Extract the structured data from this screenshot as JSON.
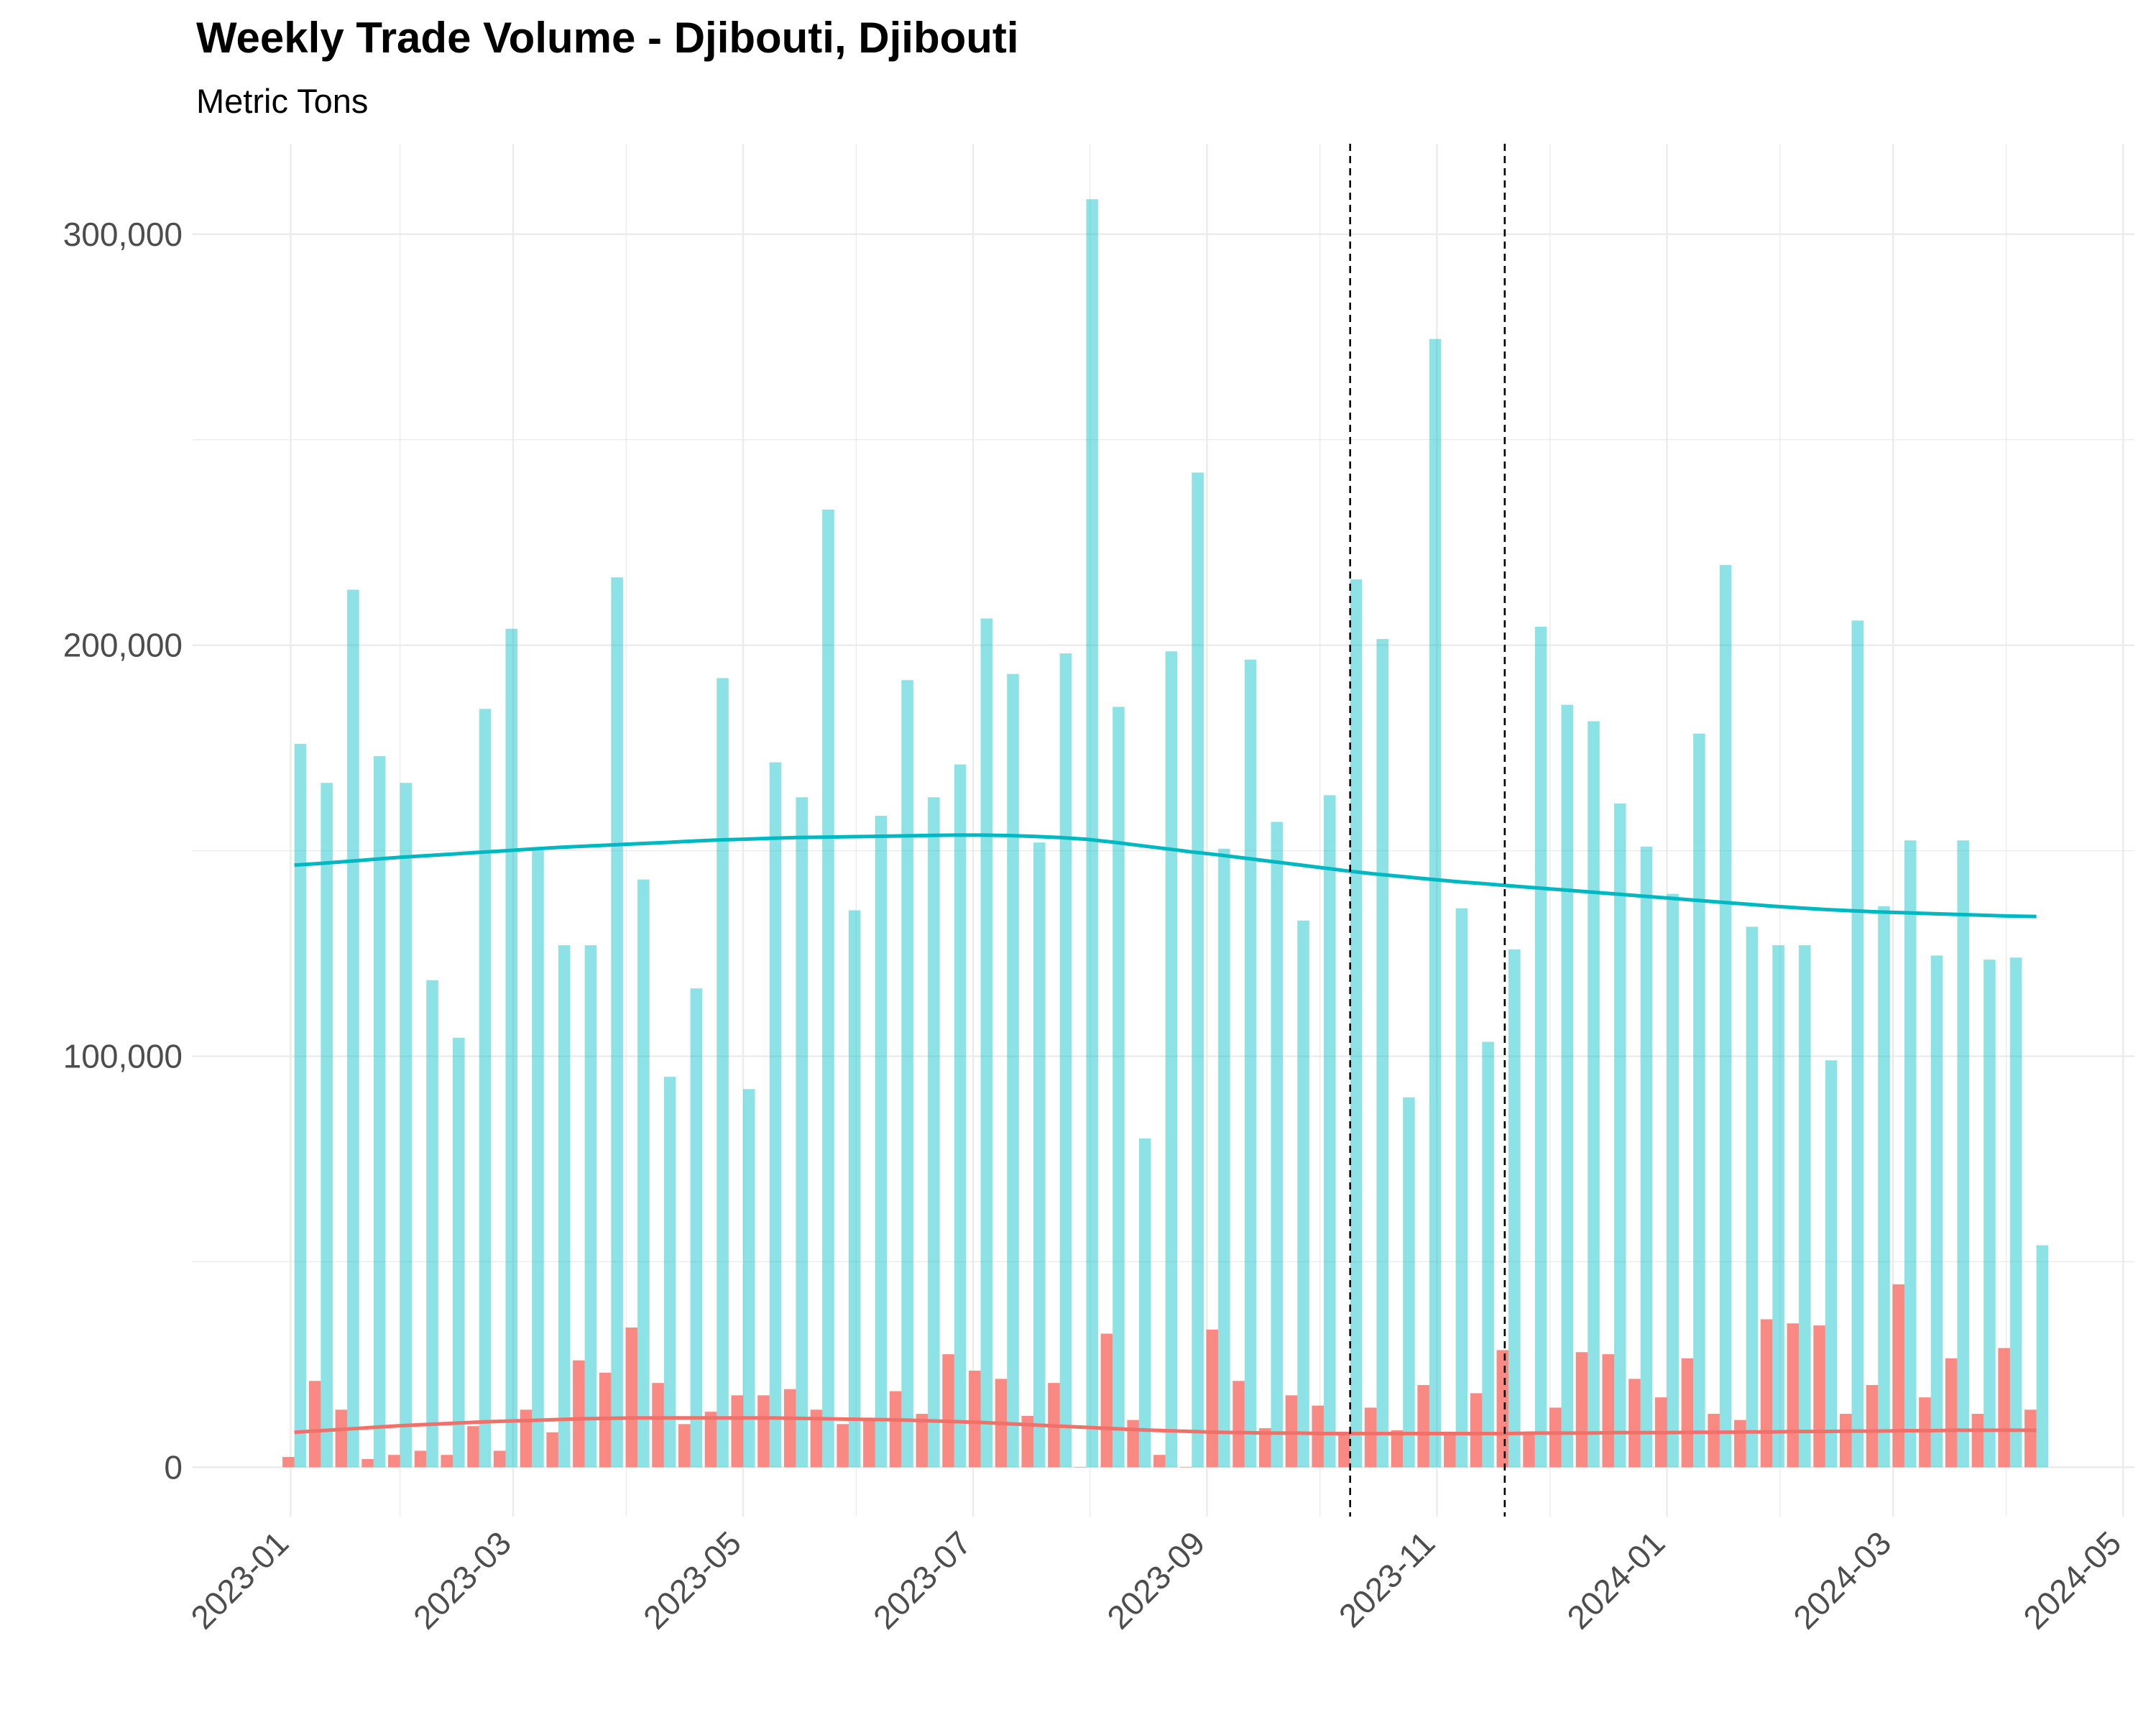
{
  "chart_data": {
    "type": "bar",
    "title": "Weekly Trade Volume - Djibouti, Djibouti",
    "subtitle": "Metric Tons",
    "xlabel": "",
    "ylabel": "",
    "x_axis": {
      "type": "date",
      "range": [
        "2022-12-06",
        "2024-05-04"
      ],
      "tick_dates": [
        "2023-01-01",
        "2023-03-01",
        "2023-05-01",
        "2023-07-01",
        "2023-09-01",
        "2023-11-01",
        "2024-01-01",
        "2024-03-01",
        "2024-05-01"
      ],
      "tick_labels": [
        "2023-01",
        "2023-03",
        "2023-05",
        "2023-07",
        "2023-09",
        "2023-11",
        "2024-01",
        "2024-03",
        "2024-05"
      ]
    },
    "y_axis": {
      "range": [
        -12000,
        322000
      ],
      "ticks": [
        0,
        100000,
        200000,
        300000
      ],
      "tick_labels": [
        "0",
        "100,000",
        "200,000",
        "300,000"
      ]
    },
    "grid": true,
    "legend": "none",
    "colors": {
      "series_a_bar": "#00BFC4",
      "series_a_line": "#00B8C1",
      "series_b_bar": "#F8766D",
      "series_b_line": "#F0716A",
      "vline": "#000000",
      "grid": "#EBEBEB"
    },
    "reference_lines": [
      "2023-10-09",
      "2023-11-19"
    ],
    "series": [
      {
        "dates": [
          "2023-01-02",
          "2023-01-09",
          "2023-01-16",
          "2023-01-23",
          "2023-01-30",
          "2023-02-06",
          "2023-02-13",
          "2023-02-20",
          "2023-02-27",
          "2023-03-06",
          "2023-03-13",
          "2023-03-20",
          "2023-03-27",
          "2023-04-03",
          "2023-04-10",
          "2023-04-17",
          "2023-04-24",
          "2023-05-01",
          "2023-05-08",
          "2023-05-15",
          "2023-05-22",
          "2023-05-29",
          "2023-06-05",
          "2023-06-12",
          "2023-06-19",
          "2023-06-26",
          "2023-07-03",
          "2023-07-10",
          "2023-07-17",
          "2023-07-24",
          "2023-07-31",
          "2023-08-07",
          "2023-08-14",
          "2023-08-21",
          "2023-08-28",
          "2023-09-04",
          "2023-09-11",
          "2023-09-18",
          "2023-09-25",
          "2023-10-02",
          "2023-10-09",
          "2023-10-16",
          "2023-10-23",
          "2023-10-30",
          "2023-11-06",
          "2023-11-13",
          "2023-11-20",
          "2023-11-27",
          "2023-12-04",
          "2023-12-11",
          "2023-12-18",
          "2023-12-25",
          "2024-01-01",
          "2024-01-08",
          "2024-01-15",
          "2024-01-22",
          "2024-01-29",
          "2024-02-05",
          "2024-02-12",
          "2024-02-19",
          "2024-02-26",
          "2024-03-04",
          "2024-03-11",
          "2024-03-18",
          "2024-03-25",
          "2024-04-01",
          "2024-04-08"
        ],
        "values": [
          176000,
          166500,
          213500,
          173000,
          166500,
          118500,
          104500,
          184500,
          204000,
          150000,
          127000,
          127000,
          216500,
          143000,
          95000,
          116500,
          192000,
          92000,
          171500,
          163000,
          233000,
          135500,
          158500,
          191500,
          163000,
          171000,
          206500,
          193000,
          152000,
          198000,
          308500,
          185000,
          80000,
          198500,
          242000,
          150500,
          196500,
          157000,
          133000,
          163500,
          216000,
          201500,
          90000,
          274500,
          136000,
          103500,
          126000,
          204500,
          185500,
          181500,
          161500,
          151000,
          139500,
          178500,
          219500,
          131500,
          127000,
          127000,
          99000,
          206000,
          136500,
          152500,
          124500,
          152500,
          123500,
          124000,
          54000
        ],
        "smooth": [
          146500,
          146900,
          147400,
          147900,
          148400,
          148800,
          149200,
          149600,
          150000,
          150400,
          150800,
          151100,
          151400,
          151700,
          152000,
          152300,
          152600,
          152800,
          153000,
          153200,
          153300,
          153400,
          153500,
          153600,
          153700,
          153800,
          153800,
          153700,
          153500,
          153200,
          152800,
          152100,
          151300,
          150500,
          149700,
          149000,
          148200,
          147400,
          146600,
          145800,
          145000,
          144300,
          143700,
          143100,
          142500,
          142000,
          141500,
          141000,
          140500,
          140000,
          139500,
          139000,
          138500,
          138000,
          137500,
          137000,
          136500,
          136100,
          135700,
          135400,
          135100,
          134900,
          134700,
          134500,
          134300,
          134100,
          134000
        ]
      },
      {
        "dates": [
          "2023-01-02",
          "2023-01-09",
          "2023-01-16",
          "2023-01-23",
          "2023-01-30",
          "2023-02-06",
          "2023-02-13",
          "2023-02-20",
          "2023-02-27",
          "2023-03-06",
          "2023-03-13",
          "2023-03-20",
          "2023-03-27",
          "2023-04-03",
          "2023-04-10",
          "2023-04-17",
          "2023-04-24",
          "2023-05-01",
          "2023-05-08",
          "2023-05-15",
          "2023-05-22",
          "2023-05-29",
          "2023-06-05",
          "2023-06-12",
          "2023-06-19",
          "2023-06-26",
          "2023-07-03",
          "2023-07-10",
          "2023-07-17",
          "2023-07-24",
          "2023-07-31",
          "2023-08-07",
          "2023-08-14",
          "2023-08-21",
          "2023-08-28",
          "2023-09-04",
          "2023-09-11",
          "2023-09-18",
          "2023-09-25",
          "2023-10-02",
          "2023-10-09",
          "2023-10-16",
          "2023-10-23",
          "2023-10-30",
          "2023-11-06",
          "2023-11-13",
          "2023-11-20",
          "2023-11-27",
          "2023-12-04",
          "2023-12-11",
          "2023-12-18",
          "2023-12-25",
          "2024-01-01",
          "2024-01-08",
          "2024-01-15",
          "2024-01-22",
          "2024-01-29",
          "2024-02-05",
          "2024-02-12",
          "2024-02-19",
          "2024-02-26",
          "2024-03-04",
          "2024-03-11",
          "2024-03-18",
          "2024-03-25",
          "2024-04-01",
          "2024-04-08"
        ],
        "values": [
          2500,
          21000,
          14000,
          2000,
          3000,
          4000,
          3000,
          10000,
          4000,
          14000,
          8500,
          26000,
          23000,
          34000,
          20500,
          10500,
          13500,
          17500,
          17500,
          19000,
          14000,
          10500,
          12000,
          18500,
          13000,
          27500,
          23500,
          21500,
          12500,
          20500,
          0,
          32500,
          11500,
          3000,
          0,
          33500,
          21000,
          9500,
          17500,
          15000,
          8500,
          14500,
          9000,
          20000,
          8500,
          18000,
          28500,
          8500,
          14500,
          28000,
          27500,
          21500,
          17000,
          26500,
          13000,
          11500,
          36000,
          35000,
          34500,
          13000,
          20000,
          44500,
          17000,
          26500,
          13000,
          29000,
          14000
        ],
        "smooth": [
          8500,
          8900,
          9300,
          9700,
          10100,
          10400,
          10700,
          11000,
          11200,
          11400,
          11600,
          11800,
          11900,
          12000,
          12000,
          12000,
          12000,
          12000,
          12000,
          11900,
          11800,
          11700,
          11600,
          11500,
          11300,
          11100,
          10900,
          10600,
          10300,
          10000,
          9700,
          9400,
          9100,
          8900,
          8700,
          8500,
          8400,
          8300,
          8300,
          8200,
          8200,
          8200,
          8200,
          8200,
          8200,
          8200,
          8200,
          8300,
          8300,
          8300,
          8400,
          8400,
          8400,
          8500,
          8500,
          8600,
          8600,
          8700,
          8700,
          8800,
          8800,
          8900,
          8900,
          9000,
          9000,
          9000,
          9000
        ]
      }
    ]
  }
}
